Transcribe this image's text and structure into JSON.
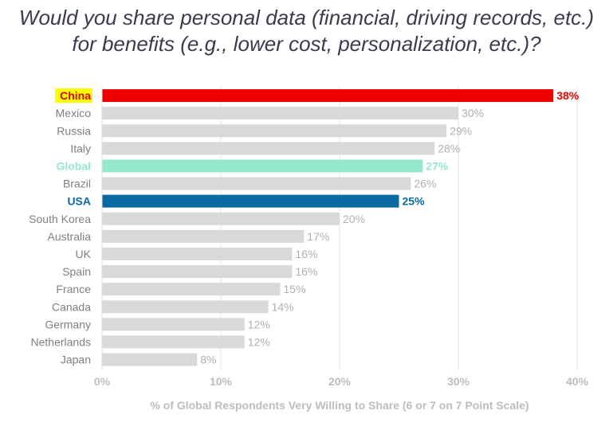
{
  "title_line1": "Would you share personal data (financial, driving records, etc.)",
  "title_line2": "for benefits (e.g., lower cost, personalization, etc.)?",
  "colors": {
    "highlight_red": "#f00000",
    "highlight_green": "#96e8cc",
    "highlight_blue": "#0a6aa1",
    "default_bar": "#d9d9d9",
    "china_label_bg": "#ffff00",
    "default_text": "#808080",
    "axis_text": "#bdbdbd"
  },
  "chart_data": {
    "type": "bar",
    "orientation": "horizontal",
    "xlabel": "% of Global Respondents Very Willing to Share (6 or 7 on 7 Point Scale)",
    "ylabel": "",
    "xlim": [
      0,
      40
    ],
    "xticks": [
      0,
      10,
      20,
      30,
      40
    ],
    "xtick_labels": [
      "0%",
      "10%",
      "20%",
      "30%",
      "40%"
    ],
    "grid": true,
    "categories": [
      "China",
      "Mexico",
      "Russia",
      "Italy",
      "Global",
      "Brazil",
      "USA",
      "South Korea",
      "Australia",
      "UK",
      "Spain",
      "France",
      "Canada",
      "Germany",
      "Netherlands",
      "Japan"
    ],
    "values": [
      38,
      30,
      29,
      28,
      27,
      26,
      25,
      20,
      17,
      16,
      16,
      15,
      14,
      12,
      12,
      8
    ],
    "value_labels": [
      "38%",
      "30%",
      "29%",
      "28%",
      "27%",
      "26%",
      "25%",
      "20%",
      "17%",
      "16%",
      "16%",
      "15%",
      "14%",
      "12%",
      "12%",
      "8%"
    ],
    "highlights": {
      "China": "red",
      "Global": "green",
      "USA": "blue"
    }
  }
}
